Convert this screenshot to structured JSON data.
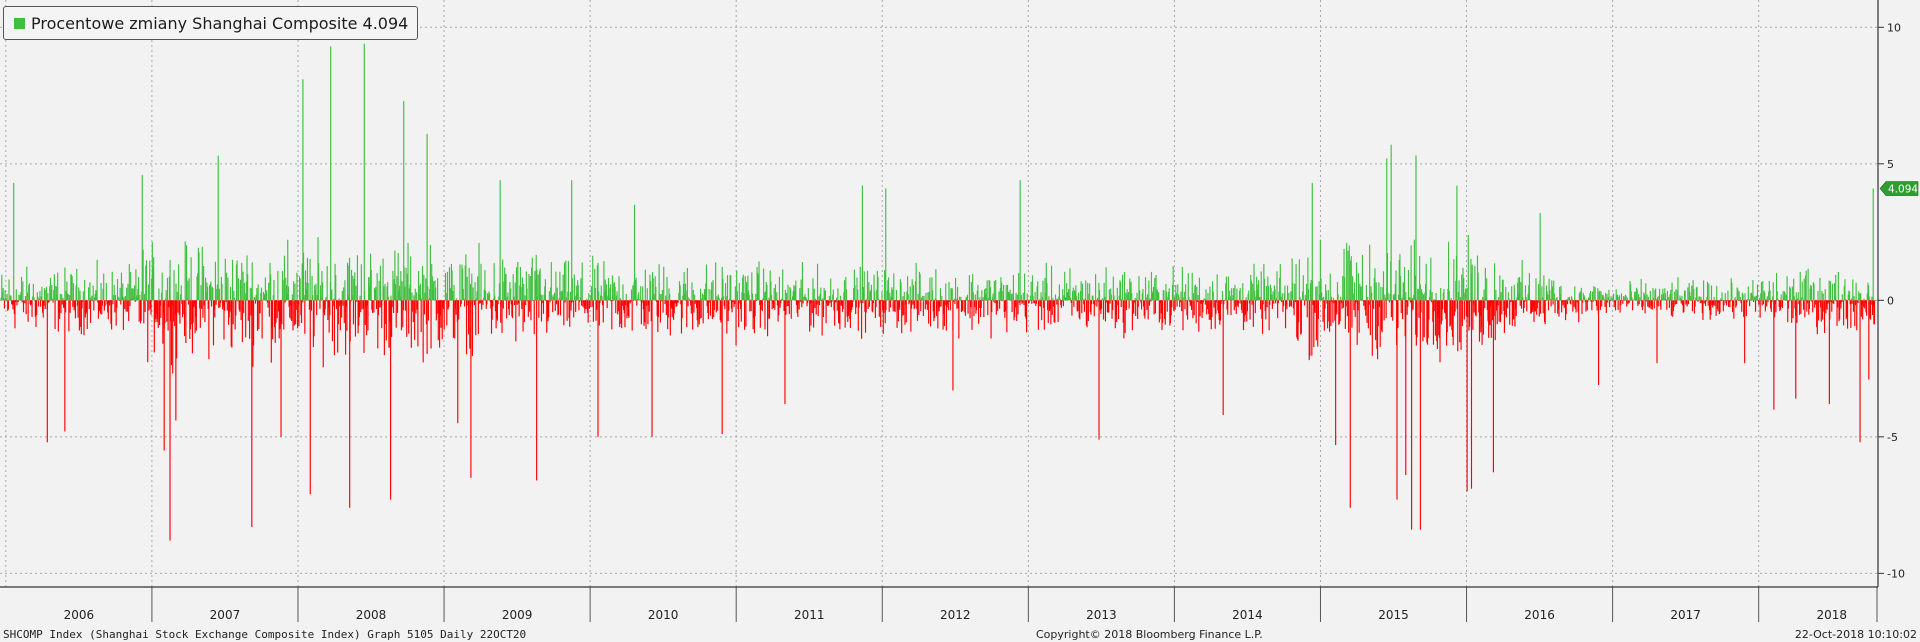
{
  "legend": {
    "label": "Procentowe zmiany Shanghai Composite 4.094",
    "color": "#3fbf3f"
  },
  "last_value_tag": "4.094",
  "footer": {
    "left": "SHCOMP Index (Shanghai Stock Exchange Composite Index) Graph 5105  Daily 22OCT20",
    "center": "Copyright© 2018 Bloomberg Finance L.P.",
    "right": "22-Oct-2018 10:10:02"
  },
  "chart_data": {
    "type": "bar",
    "title": "",
    "xlabel": "",
    "ylabel": "",
    "ylim": [
      -10.5,
      11
    ],
    "y_ticks": [
      10,
      5,
      0,
      -5,
      -10
    ],
    "y_tick_labels": [
      "10",
      "5",
      "0",
      "-5",
      "-10"
    ],
    "x_range": [
      2005.96,
      2018.81
    ],
    "x_ticks": [
      "2006",
      "2007",
      "2008",
      "2009",
      "2010",
      "2011",
      "2012",
      "2013",
      "2014",
      "2015",
      "2016",
      "2017",
      "2018"
    ],
    "grid": true,
    "legend_position": "top-left",
    "positive_color": "#3fbf3f",
    "negative_color": "#ff0000",
    "last_value": 4.094,
    "series": [
      {
        "name": "Procentowe zmiany Shanghai Composite",
        "x": [
          2006.05,
          2006.28,
          2006.4,
          2006.93,
          2007.08,
          2007.12,
          2007.16,
          2007.45,
          2007.68,
          2007.88,
          2008.03,
          2008.08,
          2008.22,
          2008.35,
          2008.45,
          2008.63,
          2008.72,
          2008.88,
          2009.09,
          2009.18,
          2009.38,
          2009.63,
          2009.87,
          2010.05,
          2010.3,
          2010.42,
          2010.9,
          2011.33,
          2011.86,
          2012.02,
          2012.48,
          2012.94,
          2013.48,
          2014.33,
          2014.94,
          2015.1,
          2015.2,
          2015.45,
          2015.48,
          2015.52,
          2015.58,
          2015.62,
          2015.65,
          2015.68,
          2015.93,
          2016.0,
          2016.03,
          2016.18,
          2016.5,
          2016.9,
          2017.3,
          2017.9,
          2018.1,
          2018.25,
          2018.48,
          2018.69,
          2018.75,
          2018.78
        ],
        "y": [
          4.3,
          -5.2,
          -4.8,
          4.6,
          -5.5,
          -8.8,
          -4.4,
          5.3,
          -8.3,
          -5.0,
          8.1,
          -7.1,
          9.3,
          -7.6,
          9.4,
          -7.3,
          7.3,
          6.1,
          -4.5,
          -6.5,
          4.4,
          -6.6,
          4.4,
          -5.0,
          3.5,
          -5.0,
          -4.9,
          -3.8,
          4.2,
          4.1,
          -3.3,
          4.4,
          -5.1,
          -4.2,
          4.3,
          -5.3,
          -7.6,
          5.2,
          5.7,
          -7.3,
          -6.4,
          -8.4,
          5.3,
          -8.4,
          4.2,
          -7.0,
          -6.9,
          -6.3,
          3.2,
          -3.1,
          -2.3,
          -2.3,
          -4.0,
          -3.6,
          -3.8,
          -5.2,
          -2.9,
          4.094
        ]
      }
    ]
  }
}
